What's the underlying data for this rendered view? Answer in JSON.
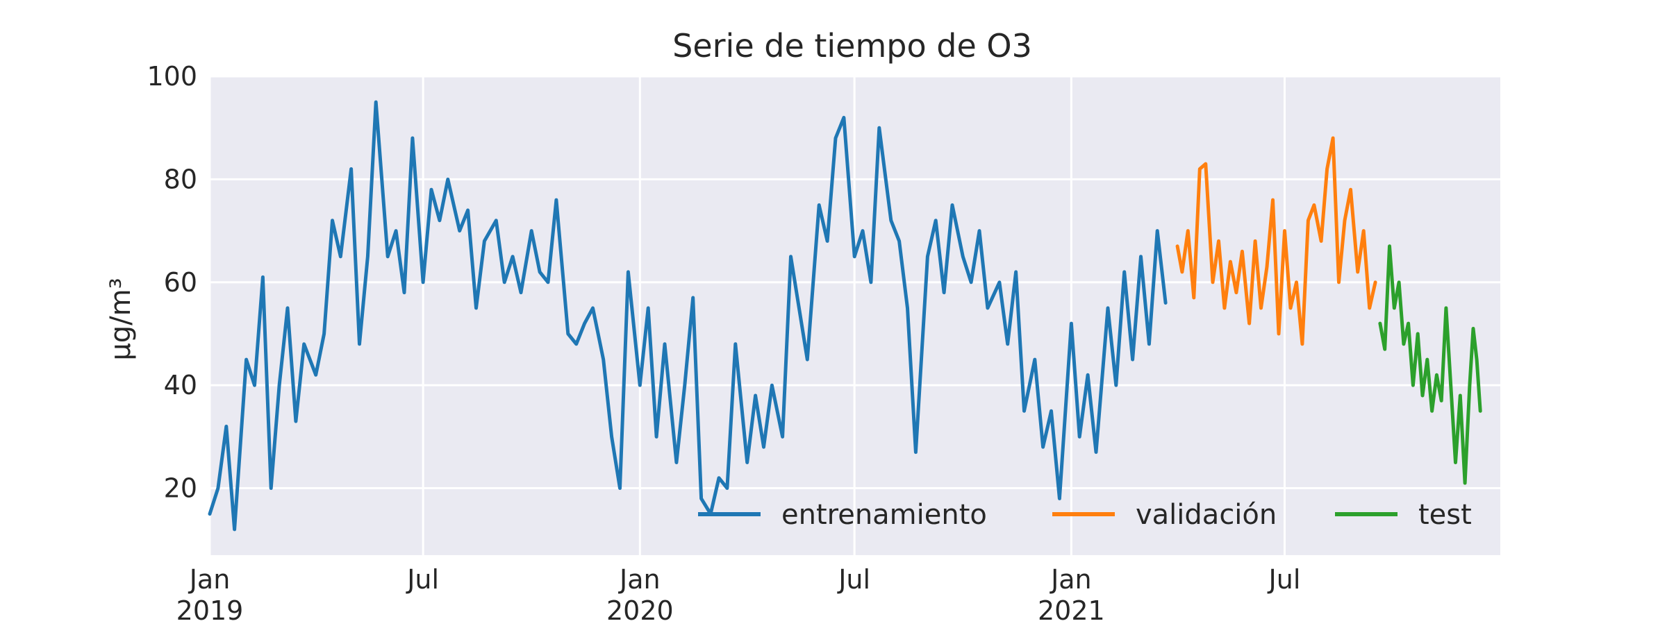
{
  "chart_data": {
    "type": "line",
    "title": "Serie de tiempo de O3",
    "xlabel": "",
    "ylabel": "µg/m³",
    "ylim": [
      7,
      100
    ],
    "xlim": [
      "2019-01-01",
      "2021-12-31"
    ],
    "yticks": [
      20,
      40,
      60,
      80,
      100
    ],
    "xticks": [
      {
        "date": "2019-01-01",
        "label": [
          "Jan",
          "2019"
        ]
      },
      {
        "date": "2019-07-01",
        "label": [
          "Jul",
          ""
        ]
      },
      {
        "date": "2020-01-01",
        "label": [
          "Jan",
          "2020"
        ]
      },
      {
        "date": "2020-07-01",
        "label": [
          "Jul",
          ""
        ]
      },
      {
        "date": "2021-01-01",
        "label": [
          "Jan",
          "2021"
        ]
      },
      {
        "date": "2021-07-01",
        "label": [
          "Jul",
          ""
        ]
      }
    ],
    "grid": true,
    "legend_position": "bottom-right",
    "colors": {
      "background": "#eaeaf2",
      "grid": "#ffffff",
      "entrenamiento": "#1f77b4",
      "validacion": "#ff7f0e",
      "test": "#2ca02c"
    },
    "series": [
      {
        "name": "entrenamiento",
        "color": "#1f77b4",
        "points": [
          [
            "2019-01-01",
            15
          ],
          [
            "2019-01-08",
            20
          ],
          [
            "2019-01-15",
            32
          ],
          [
            "2019-01-22",
            12
          ],
          [
            "2019-02-01",
            45
          ],
          [
            "2019-02-08",
            40
          ],
          [
            "2019-02-15",
            61
          ],
          [
            "2019-02-22",
            20
          ],
          [
            "2019-03-01",
            40
          ],
          [
            "2019-03-08",
            55
          ],
          [
            "2019-03-15",
            33
          ],
          [
            "2019-03-22",
            48
          ],
          [
            "2019-04-01",
            42
          ],
          [
            "2019-04-08",
            50
          ],
          [
            "2019-04-15",
            72
          ],
          [
            "2019-04-22",
            65
          ],
          [
            "2019-05-01",
            82
          ],
          [
            "2019-05-08",
            48
          ],
          [
            "2019-05-15",
            65
          ],
          [
            "2019-05-22",
            95
          ],
          [
            "2019-06-01",
            65
          ],
          [
            "2019-06-08",
            70
          ],
          [
            "2019-06-15",
            58
          ],
          [
            "2019-06-22",
            88
          ],
          [
            "2019-07-01",
            60
          ],
          [
            "2019-07-08",
            78
          ],
          [
            "2019-07-15",
            72
          ],
          [
            "2019-07-22",
            80
          ],
          [
            "2019-08-01",
            70
          ],
          [
            "2019-08-08",
            74
          ],
          [
            "2019-08-15",
            55
          ],
          [
            "2019-08-22",
            68
          ],
          [
            "2019-09-01",
            72
          ],
          [
            "2019-09-08",
            60
          ],
          [
            "2019-09-15",
            65
          ],
          [
            "2019-09-22",
            58
          ],
          [
            "2019-10-01",
            70
          ],
          [
            "2019-10-08",
            62
          ],
          [
            "2019-10-15",
            60
          ],
          [
            "2019-10-22",
            76
          ],
          [
            "2019-11-01",
            50
          ],
          [
            "2019-11-08",
            48
          ],
          [
            "2019-11-15",
            52
          ],
          [
            "2019-11-22",
            55
          ],
          [
            "2019-12-01",
            45
          ],
          [
            "2019-12-08",
            30
          ],
          [
            "2019-12-15",
            20
          ],
          [
            "2019-12-22",
            62
          ],
          [
            "2020-01-01",
            40
          ],
          [
            "2020-01-08",
            55
          ],
          [
            "2020-01-15",
            30
          ],
          [
            "2020-01-22",
            48
          ],
          [
            "2020-02-01",
            25
          ],
          [
            "2020-02-08",
            40
          ],
          [
            "2020-02-15",
            57
          ],
          [
            "2020-02-22",
            18
          ],
          [
            "2020-03-01",
            15
          ],
          [
            "2020-03-08",
            22
          ],
          [
            "2020-03-15",
            20
          ],
          [
            "2020-03-22",
            48
          ],
          [
            "2020-04-01",
            25
          ],
          [
            "2020-04-08",
            38
          ],
          [
            "2020-04-15",
            28
          ],
          [
            "2020-04-22",
            40
          ],
          [
            "2020-05-01",
            30
          ],
          [
            "2020-05-08",
            65
          ],
          [
            "2020-05-15",
            55
          ],
          [
            "2020-05-22",
            45
          ],
          [
            "2020-06-01",
            75
          ],
          [
            "2020-06-08",
            68
          ],
          [
            "2020-06-15",
            88
          ],
          [
            "2020-06-22",
            92
          ],
          [
            "2020-07-01",
            65
          ],
          [
            "2020-07-08",
            70
          ],
          [
            "2020-07-15",
            60
          ],
          [
            "2020-07-22",
            90
          ],
          [
            "2020-08-01",
            72
          ],
          [
            "2020-08-08",
            68
          ],
          [
            "2020-08-15",
            55
          ],
          [
            "2020-08-22",
            27
          ],
          [
            "2020-09-01",
            65
          ],
          [
            "2020-09-08",
            72
          ],
          [
            "2020-09-15",
            58
          ],
          [
            "2020-09-22",
            75
          ],
          [
            "2020-10-01",
            65
          ],
          [
            "2020-10-08",
            60
          ],
          [
            "2020-10-15",
            70
          ],
          [
            "2020-10-22",
            55
          ],
          [
            "2020-11-01",
            60
          ],
          [
            "2020-11-08",
            48
          ],
          [
            "2020-11-15",
            62
          ],
          [
            "2020-11-22",
            35
          ],
          [
            "2020-12-01",
            45
          ],
          [
            "2020-12-08",
            28
          ],
          [
            "2020-12-15",
            35
          ],
          [
            "2020-12-22",
            18
          ],
          [
            "2021-01-01",
            52
          ],
          [
            "2021-01-08",
            30
          ],
          [
            "2021-01-15",
            42
          ],
          [
            "2021-01-22",
            27
          ],
          [
            "2021-02-01",
            55
          ],
          [
            "2021-02-08",
            40
          ],
          [
            "2021-02-15",
            62
          ],
          [
            "2021-02-22",
            45
          ],
          [
            "2021-03-01",
            65
          ],
          [
            "2021-03-08",
            48
          ],
          [
            "2021-03-15",
            70
          ],
          [
            "2021-03-22",
            56
          ]
        ]
      },
      {
        "name": "validación",
        "color": "#ff7f0e",
        "points": [
          [
            "2021-04-01",
            67
          ],
          [
            "2021-04-05",
            62
          ],
          [
            "2021-04-10",
            70
          ],
          [
            "2021-04-15",
            57
          ],
          [
            "2021-04-20",
            82
          ],
          [
            "2021-04-25",
            83
          ],
          [
            "2021-05-01",
            60
          ],
          [
            "2021-05-06",
            68
          ],
          [
            "2021-05-11",
            55
          ],
          [
            "2021-05-16",
            64
          ],
          [
            "2021-05-21",
            58
          ],
          [
            "2021-05-26",
            66
          ],
          [
            "2021-06-01",
            52
          ],
          [
            "2021-06-06",
            68
          ],
          [
            "2021-06-11",
            55
          ],
          [
            "2021-06-16",
            63
          ],
          [
            "2021-06-21",
            76
          ],
          [
            "2021-06-26",
            50
          ],
          [
            "2021-07-01",
            70
          ],
          [
            "2021-07-06",
            55
          ],
          [
            "2021-07-11",
            60
          ],
          [
            "2021-07-16",
            48
          ],
          [
            "2021-07-21",
            72
          ],
          [
            "2021-07-26",
            75
          ],
          [
            "2021-08-01",
            68
          ],
          [
            "2021-08-06",
            82
          ],
          [
            "2021-08-11",
            88
          ],
          [
            "2021-08-16",
            60
          ],
          [
            "2021-08-21",
            72
          ],
          [
            "2021-08-26",
            78
          ],
          [
            "2021-09-01",
            62
          ],
          [
            "2021-09-06",
            70
          ],
          [
            "2021-09-11",
            55
          ],
          [
            "2021-09-16",
            60
          ]
        ]
      },
      {
        "name": "test",
        "color": "#2ca02c",
        "points": [
          [
            "2021-09-20",
            52
          ],
          [
            "2021-09-24",
            47
          ],
          [
            "2021-09-28",
            67
          ],
          [
            "2021-10-02",
            55
          ],
          [
            "2021-10-06",
            60
          ],
          [
            "2021-10-10",
            48
          ],
          [
            "2021-10-14",
            52
          ],
          [
            "2021-10-18",
            40
          ],
          [
            "2021-10-22",
            50
          ],
          [
            "2021-10-26",
            38
          ],
          [
            "2021-10-30",
            45
          ],
          [
            "2021-11-03",
            35
          ],
          [
            "2021-11-07",
            42
          ],
          [
            "2021-11-11",
            37
          ],
          [
            "2021-11-15",
            55
          ],
          [
            "2021-11-19",
            40
          ],
          [
            "2021-11-23",
            25
          ],
          [
            "2021-11-27",
            38
          ],
          [
            "2021-12-01",
            21
          ],
          [
            "2021-12-05",
            40
          ],
          [
            "2021-12-08",
            51
          ],
          [
            "2021-12-11",
            45
          ],
          [
            "2021-12-14",
            35
          ]
        ]
      }
    ]
  }
}
